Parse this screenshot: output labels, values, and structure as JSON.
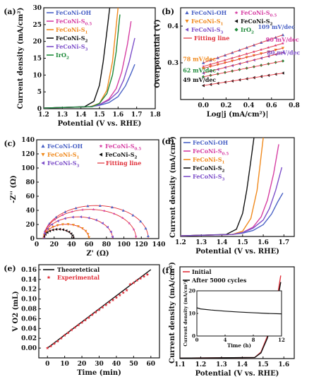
{
  "panels": [
    {
      "id": "a",
      "panel_label": "(a)",
      "chart_data": {
        "type": "line",
        "xlabel": "Potential (V vs. RHE)",
        "ylabel": "Current density (mA/cm²)",
        "xlim": [
          1.2,
          1.8
        ],
        "ylim": [
          0,
          30
        ],
        "xticks": [
          "1.2",
          "1.3",
          "1.4",
          "1.5",
          "1.6",
          "1.7",
          "1.8"
        ],
        "yticks": [
          "0",
          "5",
          "10",
          "15",
          "20",
          "25",
          "30"
        ],
        "legend_position": "top-left",
        "series": [
          {
            "name": "FeCoNi-OH",
            "color": "#4b63c6",
            "x": [
              1.2,
              1.45,
              1.5,
              1.55,
              1.6,
              1.64,
              1.67,
              1.69
            ],
            "y": [
              0.2,
              0.6,
              1.0,
              1.8,
              3.6,
              6.8,
              10.5,
              13.2
            ]
          },
          {
            "name": "FeCoNi-S0.5",
            "color": "#d63fa3",
            "x": [
              1.2,
              1.45,
              1.5,
              1.55,
              1.59,
              1.62,
              1.65,
              1.67
            ],
            "y": [
              0.2,
              0.6,
              1.2,
              2.8,
              6.0,
              11.0,
              19.0,
              26.0
            ]
          },
          {
            "name": "FeCoNi-S1",
            "color": "#f08a1e",
            "x": [
              1.2,
              1.45,
              1.5,
              1.54,
              1.57,
              1.585,
              1.6
            ],
            "y": [
              0.2,
              0.6,
              1.6,
              5.5,
              14.0,
              22.0,
              30.0
            ]
          },
          {
            "name": "FeCoNi-S2",
            "color": "#111111",
            "x": [
              1.2,
              1.42,
              1.47,
              1.5,
              1.52,
              1.54,
              1.555
            ],
            "y": [
              0.2,
              0.6,
              2.2,
              7.0,
              14.0,
              23.0,
              30.0
            ]
          },
          {
            "name": "FeCoNi-S3",
            "color": "#7d4fc9",
            "x": [
              1.2,
              1.45,
              1.5,
              1.55,
              1.6,
              1.63,
              1.66,
              1.69
            ],
            "y": [
              0.2,
              0.6,
              1.2,
              2.5,
              5.0,
              8.5,
              14.0,
              21.0
            ]
          },
          {
            "name": "IrO2",
            "color": "#1e8a3a",
            "x": [
              1.2,
              1.46,
              1.5,
              1.54,
              1.57,
              1.59,
              1.61
            ],
            "y": [
              0.2,
              0.6,
              1.6,
              4.5,
              10.0,
              17.0,
              28.0
            ]
          }
        ]
      }
    },
    {
      "id": "b",
      "panel_label": "(b)",
      "chart_data": {
        "type": "scatter",
        "xlabel": "Log|j (mA/cm²)|",
        "ylabel": "Overpotential (V)",
        "xlim": [
          -0.2,
          0.8
        ],
        "ylim": [
          0.2,
          0.45
        ],
        "xticks": [
          "0.0",
          "0.2",
          "0.4",
          "0.6",
          "0.8"
        ],
        "yticks": [
          "0.3",
          "0.4"
        ],
        "legend_position": "top",
        "fitting_line_label": "Fitting line",
        "series": [
          {
            "name": "FeCoNi-OH",
            "color": "#4b63c6",
            "marker": "triangle",
            "slope_label": "109 mV/dec",
            "x": [
              0.0,
              0.7
            ],
            "y": [
              0.3,
              0.376
            ]
          },
          {
            "name": "FeCoNi-S0.5",
            "color": "#d63fa3",
            "marker": "star",
            "slope_label": "90 mV/dec",
            "x": [
              0.0,
              0.7
            ],
            "y": [
              0.29,
              0.353
            ]
          },
          {
            "name": "FeCoNi-S1",
            "color": "#f08a1e",
            "marker": "triangle-down",
            "slope_label": "78 mV/dec",
            "x": [
              0.0,
              0.7
            ],
            "y": [
              0.285,
              0.34
            ]
          },
          {
            "name": "FeCoNi-S2",
            "color": "#111111",
            "marker": "triangle-left",
            "slope_label": "49 mV/dec",
            "x": [
              0.0,
              0.7
            ],
            "y": [
              0.238,
              0.272
            ]
          },
          {
            "name": "FeCoNi-S3",
            "color": "#7d4fc9",
            "marker": "triangle-left",
            "slope_label": "80 mV/dec",
            "x": [
              0.0,
              0.7
            ],
            "y": [
              0.272,
              0.328
            ]
          },
          {
            "name": "IrO2",
            "color": "#1e8a3a",
            "marker": "diamond",
            "slope_label": "62 mV/dec",
            "x": [
              0.0,
              0.7
            ],
            "y": [
              0.262,
              0.305
            ]
          }
        ]
      }
    },
    {
      "id": "c",
      "panel_label": "(c)",
      "chart_data": {
        "type": "scatter",
        "xlabel": "Z' (Ω)",
        "ylabel": "-Z'' (Ω)",
        "xlim": [
          0,
          140
        ],
        "ylim": [
          0,
          140
        ],
        "xticks": [
          "0",
          "20",
          "40",
          "60",
          "80",
          "100",
          "120",
          "140"
        ],
        "yticks": [
          "0",
          "20",
          "40",
          "60",
          "80",
          "100",
          "120",
          "140"
        ],
        "legend_position": "top",
        "fitting_line_label": "Fitting line",
        "series": [
          {
            "name": "FeCoNi-OH",
            "color": "#4b63c6",
            "marker": "triangle",
            "semicircle": {
              "start": 8,
              "end": 128
            }
          },
          {
            "name": "FeCoNi-S0.5",
            "color": "#d63fa3",
            "marker": "star",
            "semicircle": {
              "start": 8,
              "end": 114
            }
          },
          {
            "name": "FeCoNi-S1",
            "color": "#f08a1e",
            "marker": "triangle-down",
            "semicircle": {
              "start": 8,
              "end": 60
            }
          },
          {
            "name": "FeCoNi-S2",
            "color": "#111111",
            "marker": "triangle-left",
            "semicircle": {
              "start": 8,
              "end": 42
            }
          },
          {
            "name": "FeCoNi-S3",
            "color": "#7d4fc9",
            "marker": "triangle-left",
            "semicircle": {
              "start": 8,
              "end": 87
            }
          }
        ]
      }
    },
    {
      "id": "d",
      "panel_label": "(d)",
      "chart_data": {
        "type": "line",
        "xlabel": "Potential (V vs. RHE)",
        "ylabel": "Current density (mA/cm²)",
        "xlim": [
          1.2,
          1.75
        ],
        "ylim": [
          0,
          30
        ],
        "xticks": [
          "1.2",
          "1.3",
          "1.4",
          "1.5",
          "1.6",
          "1.7"
        ],
        "legend_position": "top-left",
        "series": [
          {
            "name": "FeCoNi-OH",
            "color": "#4b63c6",
            "x": [
              1.2,
              1.45,
              1.5,
              1.55,
              1.6,
              1.64,
              1.67,
              1.695
            ],
            "y": [
              0.2,
              0.6,
              1.0,
              1.8,
              3.6,
              6.8,
              10.5,
              13.2
            ]
          },
          {
            "name": "FeCoNi-S0.5",
            "color": "#d63fa3",
            "x": [
              1.2,
              1.45,
              1.5,
              1.55,
              1.59,
              1.62,
              1.65,
              1.675
            ],
            "y": [
              0.2,
              0.6,
              1.2,
              2.8,
              6.0,
              11.0,
              19.0,
              28.0
            ]
          },
          {
            "name": "FeCoNi-S1",
            "color": "#f08a1e",
            "x": [
              1.2,
              1.45,
              1.5,
              1.54,
              1.57,
              1.585,
              1.6
            ],
            "y": [
              0.2,
              0.6,
              1.6,
              5.5,
              14.0,
              22.0,
              30.0
            ]
          },
          {
            "name": "FeCoNi-S2",
            "color": "#111111",
            "x": [
              1.2,
              1.42,
              1.47,
              1.5,
              1.52,
              1.54,
              1.555
            ],
            "y": [
              0.2,
              0.6,
              2.2,
              7.0,
              14.0,
              23.0,
              30.0
            ]
          },
          {
            "name": "FeCoNi-S3",
            "color": "#7d4fc9",
            "x": [
              1.2,
              1.45,
              1.5,
              1.55,
              1.6,
              1.63,
              1.66,
              1.69
            ],
            "y": [
              0.2,
              0.6,
              1.2,
              2.5,
              5.0,
              8.5,
              14.0,
              21.0
            ]
          }
        ]
      }
    },
    {
      "id": "e",
      "panel_label": "(e)",
      "chart_data": {
        "type": "line",
        "xlabel": "Time (min)",
        "ylabel": "V O2 (mL)",
        "xlim": [
          -5,
          65
        ],
        "ylim": [
          -0.02,
          0.17
        ],
        "xticks": [
          "0",
          "10",
          "20",
          "30",
          "40",
          "50",
          "60"
        ],
        "yticks": [
          "0.00",
          "0.02",
          "0.04",
          "0.06",
          "0.08",
          "0.10",
          "0.12",
          "0.14",
          "0.16"
        ],
        "legend_position": "top-left",
        "series": [
          {
            "name": "Theoretetical",
            "color": "#111111",
            "x": [
              0,
              60
            ],
            "y": [
              0.0,
              0.16
            ]
          },
          {
            "name": "Experimental",
            "color": "#e0303a",
            "marker": "star",
            "x": [
              0,
              2,
              4,
              6,
              8,
              10,
              12,
              14,
              16,
              18,
              20,
              22,
              24,
              26,
              28,
              30,
              32,
              34,
              36,
              38,
              40,
              42,
              44,
              46,
              48,
              50,
              52,
              54,
              56,
              58
            ],
            "y": [
              0.0,
              0.004,
              0.009,
              0.014,
              0.02,
              0.026,
              0.031,
              0.037,
              0.042,
              0.047,
              0.052,
              0.057,
              0.062,
              0.068,
              0.073,
              0.078,
              0.083,
              0.088,
              0.093,
              0.098,
              0.103,
              0.108,
              0.113,
              0.118,
              0.13,
              0.133,
              0.138,
              0.142,
              0.146,
              0.15
            ]
          }
        ]
      }
    },
    {
      "id": "f",
      "panel_label": "(f)",
      "chart_data": {
        "type": "line",
        "xlabel": "Potential (V vs. RHE)",
        "ylabel": "Current density (mA/cm²)",
        "xlim": [
          1.1,
          1.65
        ],
        "ylim": [
          0,
          42
        ],
        "xticks": [
          "1.1",
          "1.2",
          "1.3",
          "1.4",
          "1.5",
          "1.6"
        ],
        "legend_position": "top-left",
        "series": [
          {
            "name": "Initial",
            "color": "#e0303a",
            "x": [
              1.1,
              1.46,
              1.49,
              1.52,
              1.55,
              1.57,
              1.585
            ],
            "y": [
              0.2,
              0.5,
              3.0,
              10.0,
              20.0,
              29.0,
              38.0
            ]
          },
          {
            "name": "After 5000 cycles",
            "color": "#111111",
            "x": [
              1.1,
              1.46,
              1.49,
              1.52,
              1.55,
              1.57,
              1.585
            ],
            "y": [
              0.2,
              0.5,
              2.6,
              9.2,
              18.5,
              27.0,
              35.0
            ]
          }
        ],
        "inset": {
          "type": "line",
          "xlabel": "Time (h)",
          "ylabel": "Current density (mA/cm²)",
          "xlim": [
            0,
            12
          ],
          "ylim": [
            0,
            20
          ],
          "xticks": [
            "0",
            "4",
            "8",
            "12"
          ],
          "yticks": [
            "0",
            "10",
            "20"
          ],
          "series": [
            {
              "name": "",
              "color": "#111111",
              "x": [
                0,
                0.5,
                2,
                4,
                6,
                8,
                10,
                12
              ],
              "y": [
                12.5,
                12.0,
                11.5,
                11.0,
                10.6,
                10.3,
                10.0,
                9.8
              ]
            }
          ]
        }
      }
    }
  ]
}
